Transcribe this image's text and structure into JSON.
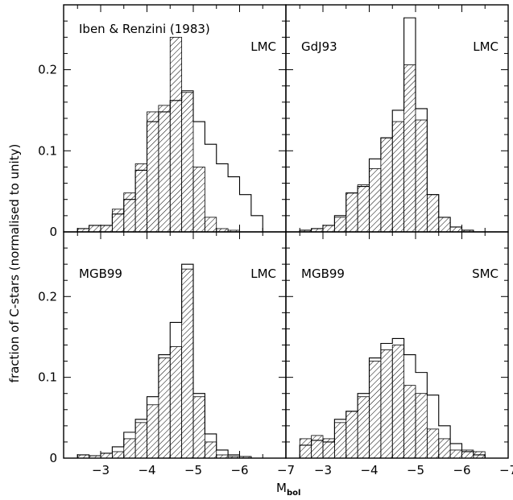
{
  "chart_data": {
    "type": "histogram-grid",
    "ylabel": "fraction of C-stars  (normalised to unity)",
    "xlabel_main": "M",
    "xlabel_sub": "bol",
    "xlim": [
      -2.2,
      -7
    ],
    "ylim": [
      0,
      0.28
    ],
    "xticks": [
      -3,
      -4,
      -5,
      -6,
      -7
    ],
    "xticklabels": [
      "−3",
      "−4",
      "−5",
      "−6",
      "−7"
    ],
    "yticks": [
      0,
      0.1,
      0.2
    ],
    "yticklabels": [
      "0",
      "0.1",
      "0.2"
    ],
    "bin_width": 0.25,
    "panels": [
      {
        "id": "iben-renzini",
        "label_left": "Iben & Renzini (1983)",
        "label_right": "LMC",
        "bins_start": [
          -2.5,
          -2.75,
          -3.0,
          -3.25,
          -3.5,
          -3.75,
          -4.0,
          -4.25,
          -4.5,
          -4.75,
          -5.0,
          -5.25,
          -5.5,
          -5.75,
          -6.0,
          -6.25
        ],
        "observed": [
          0.004,
          0.008,
          0.008,
          0.028,
          0.048,
          0.084,
          0.148,
          0.156,
          0.24,
          0.172,
          0.08,
          0.018,
          0.004,
          0.002,
          0.0,
          0.0
        ],
        "model": [
          0.004,
          0.008,
          0.008,
          0.022,
          0.04,
          0.076,
          0.136,
          0.148,
          0.162,
          0.174,
          0.136,
          0.108,
          0.084,
          0.068,
          0.046,
          0.02
        ]
      },
      {
        "id": "gdj93",
        "label_left": "GdJ93",
        "label_right": "LMC",
        "bins_start": [
          -2.5,
          -2.75,
          -3.0,
          -3.25,
          -3.5,
          -3.75,
          -4.0,
          -4.25,
          -4.5,
          -4.75,
          -5.0,
          -5.25,
          -5.5,
          -5.75,
          -6.0,
          -6.25
        ],
        "observed": [
          0.002,
          0.004,
          0.008,
          0.018,
          0.048,
          0.058,
          0.078,
          0.116,
          0.136,
          0.206,
          0.138,
          0.046,
          0.018,
          0.006,
          0.002,
          0.0
        ],
        "model": [
          0.002,
          0.004,
          0.008,
          0.02,
          0.048,
          0.056,
          0.09,
          0.116,
          0.15,
          0.264,
          0.152,
          0.046,
          0.018,
          0.006,
          0.002,
          0.0
        ]
      },
      {
        "id": "mgb99-lmc",
        "label_left": "MGB99",
        "label_right": "LMC",
        "bins_start": [
          -2.5,
          -2.75,
          -3.0,
          -3.25,
          -3.5,
          -3.75,
          -4.0,
          -4.25,
          -4.5,
          -4.75,
          -5.0,
          -5.25,
          -5.5,
          -5.75,
          -6.0,
          -6.25
        ],
        "observed": [
          0.004,
          0.003,
          0.006,
          0.008,
          0.024,
          0.044,
          0.066,
          0.124,
          0.138,
          0.234,
          0.076,
          0.02,
          0.004,
          0.002,
          0.002,
          0.0
        ],
        "model": [
          0.004,
          0.003,
          0.006,
          0.014,
          0.032,
          0.048,
          0.076,
          0.128,
          0.168,
          0.24,
          0.08,
          0.03,
          0.01,
          0.004,
          0.002,
          0.0
        ]
      },
      {
        "id": "mgb99-smc",
        "label_left": "MGB99",
        "label_right": "SMC",
        "bins_start": [
          -2.5,
          -2.75,
          -3.0,
          -3.25,
          -3.5,
          -3.75,
          -4.0,
          -4.25,
          -4.5,
          -4.75,
          -5.0,
          -5.25,
          -5.5,
          -5.75,
          -6.0,
          -6.25
        ],
        "observed": [
          0.024,
          0.028,
          0.024,
          0.044,
          0.058,
          0.076,
          0.12,
          0.134,
          0.14,
          0.09,
          0.08,
          0.036,
          0.024,
          0.01,
          0.01,
          0.008
        ],
        "model": [
          0.016,
          0.022,
          0.02,
          0.048,
          0.058,
          0.08,
          0.124,
          0.142,
          0.148,
          0.128,
          0.106,
          0.078,
          0.04,
          0.018,
          0.008,
          0.004
        ]
      }
    ]
  }
}
